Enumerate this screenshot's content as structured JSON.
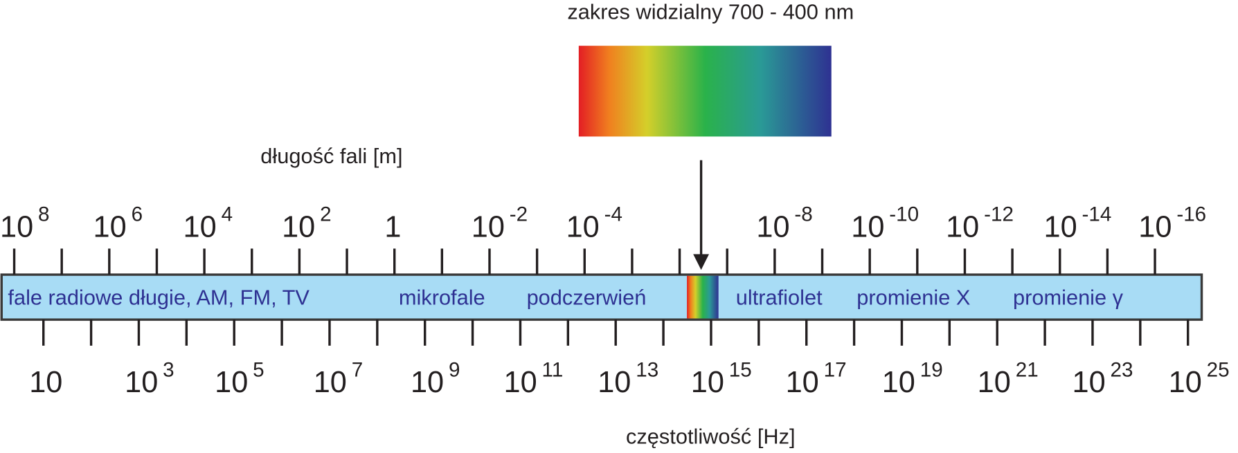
{
  "title": "zakres widzialny 700 - 400 nm",
  "wavelength_label": "długość fali [m]",
  "frequency_label": "częstotliwość [Hz]",
  "wavelength_ticks": [
    {
      "base": "10",
      "exponent": "8"
    },
    {
      "base": "10",
      "exponent": "6"
    },
    {
      "base": "10",
      "exponent": "4"
    },
    {
      "base": "10",
      "exponent": "2"
    },
    {
      "base": "1"
    },
    {
      "base": "10",
      "exponent": "-2"
    },
    {
      "base": "10",
      "exponent": "-4"
    },
    {
      "base": "10",
      "exponent": "-8"
    },
    {
      "base": "10",
      "exponent": "-10"
    },
    {
      "base": "10",
      "exponent": "-12"
    },
    {
      "base": "10",
      "exponent": "-14"
    },
    {
      "base": "10",
      "exponent": "-16"
    }
  ],
  "frequency_ticks": [
    {
      "base": "10"
    },
    {
      "base": "10",
      "exponent": "3"
    },
    {
      "base": "10",
      "exponent": "5"
    },
    {
      "base": "10",
      "exponent": "7"
    },
    {
      "base": "10",
      "exponent": "9"
    },
    {
      "base": "10",
      "exponent": "11"
    },
    {
      "base": "10",
      "exponent": "13"
    },
    {
      "base": "10",
      "exponent": "15"
    },
    {
      "base": "10",
      "exponent": "17"
    },
    {
      "base": "10",
      "exponent": "19"
    },
    {
      "base": "10",
      "exponent": "21"
    },
    {
      "base": "10",
      "exponent": "23"
    },
    {
      "base": "10",
      "exponent": "25"
    }
  ],
  "bands": [
    "fale radiowe długie, AM, FM, TV",
    "mikrofale",
    "podczerwień",
    "ultrafiolet",
    "promienie X",
    "promienie γ"
  ]
}
